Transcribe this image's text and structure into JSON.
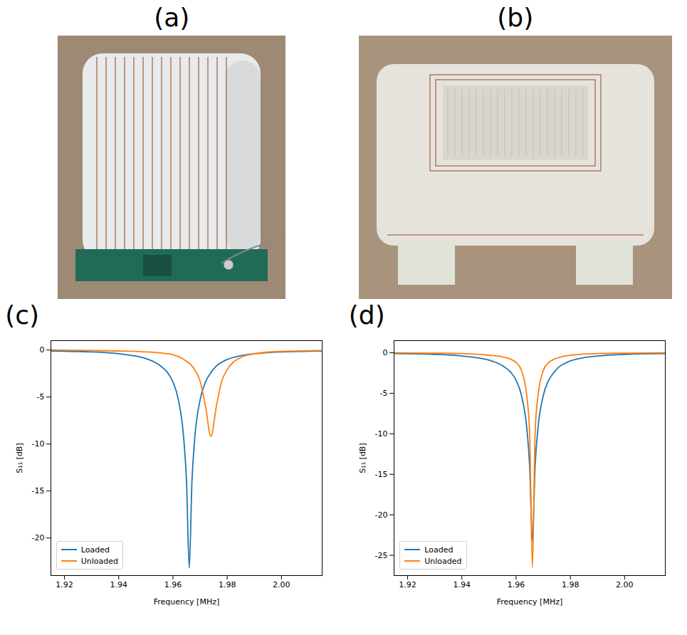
{
  "photos": [
    {
      "label": "(a)"
    },
    {
      "label": "(b)"
    }
  ],
  "chart_data": [
    {
      "type": "line",
      "title": "(c)",
      "x_label": "Frequency [MHz]",
      "y_label": "S₁₁ [dB]",
      "x": [
        1.915,
        1.93,
        1.94,
        1.95,
        1.955,
        1.958,
        1.96,
        1.962,
        1.964,
        1.965,
        1.966,
        1.967,
        1.968,
        1.97,
        1.972,
        1.974,
        1.976,
        1.978,
        1.98,
        1.985,
        1.99,
        2.0,
        2.015
      ],
      "series": [
        {
          "name": "Loaded",
          "color": "#1f77b4",
          "values": [
            -0.1,
            -0.2,
            -0.4,
            -0.9,
            -1.6,
            -2.4,
            -3.4,
            -5.3,
            -9.5,
            -14,
            -23.2,
            -14,
            -9.5,
            -5.3,
            -3.4,
            -2.4,
            -1.7,
            -1.3,
            -1.0,
            -0.6,
            -0.4,
            -0.2,
            -0.1
          ]
        },
        {
          "name": "Unloaded",
          "color": "#ff7f0e",
          "values": [
            0,
            -0.05,
            -0.1,
            -0.2,
            -0.3,
            -0.4,
            -0.5,
            -0.7,
            -1.0,
            -1.2,
            -1.4,
            -1.7,
            -2.1,
            -3.3,
            -6.0,
            -9.2,
            -6.0,
            -3.3,
            -2.1,
            -0.8,
            -0.4,
            -0.15,
            -0.05
          ]
        }
      ],
      "xlim": [
        1.915,
        2.015
      ],
      "xticks": [
        1.92,
        1.94,
        1.96,
        1.98,
        {
          "value": 2,
          "label": "2.00"
        }
      ],
      "ylim": [
        -24,
        1
      ],
      "yticks": [
        0,
        -5,
        -10,
        -15,
        -20
      ],
      "grid": false,
      "legend": "lower left"
    },
    {
      "type": "line",
      "title": "(d)",
      "x_label": "Frequency [MHz]",
      "y_label": "S₁₁ [dB]",
      "x": [
        1.915,
        1.93,
        1.94,
        1.95,
        1.955,
        1.958,
        1.96,
        1.962,
        1.964,
        1.965,
        1.966,
        1.967,
        1.968,
        1.97,
        1.972,
        1.974,
        1.976,
        1.978,
        1.98,
        1.985,
        1.99,
        2.0,
        2.015
      ],
      "series": [
        {
          "name": "Loaded",
          "color": "#1f77b4",
          "values": [
            -0.1,
            -0.2,
            -0.4,
            -0.9,
            -1.6,
            -2.4,
            -3.4,
            -5.3,
            -9.5,
            -14,
            -23.2,
            -14,
            -9.5,
            -5.3,
            -3.4,
            -2.4,
            -1.7,
            -1.3,
            -1.0,
            -0.6,
            -0.4,
            -0.2,
            -0.1
          ]
        },
        {
          "name": "Unloaded",
          "color": "#ff7f0e",
          "values": [
            0,
            -0.05,
            -0.1,
            -0.3,
            -0.5,
            -0.8,
            -1.2,
            -2.2,
            -5.5,
            -10,
            -26.5,
            -10,
            -5.5,
            -2.2,
            -1.2,
            -0.8,
            -0.55,
            -0.4,
            -0.3,
            -0.15,
            -0.1,
            -0.05,
            0
          ]
        }
      ],
      "xlim": [
        1.915,
        2.015
      ],
      "xticks": [
        1.92,
        1.94,
        1.96,
        1.98,
        {
          "value": 2,
          "label": "2.00"
        }
      ],
      "ylim": [
        -27.5,
        1.5
      ],
      "yticks": [
        0,
        -5,
        -10,
        -15,
        -20,
        -25
      ],
      "grid": false,
      "legend": "lower left"
    }
  ]
}
